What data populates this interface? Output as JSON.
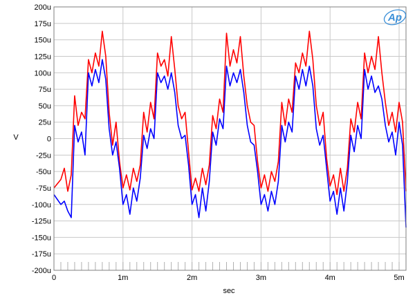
{
  "logo": {
    "text": "Ap",
    "color": "#3a8fd8"
  },
  "chart_data": {
    "type": "line",
    "title": "",
    "xlabel": "sec",
    "ylabel": "V",
    "xlim": [
      0,
      0.0051
    ],
    "ylim": [
      -200,
      200
    ],
    "y_unit": "u",
    "grid": true,
    "x_ticks": [
      {
        "value": 0,
        "label": "0"
      },
      {
        "value": 0.001,
        "label": "1m"
      },
      {
        "value": 0.002,
        "label": "2m"
      },
      {
        "value": 0.003,
        "label": "3m"
      },
      {
        "value": 0.004,
        "label": "4m"
      },
      {
        "value": 0.005,
        "label": "5m"
      }
    ],
    "y_ticks": [
      {
        "value": 200,
        "label": "200u"
      },
      {
        "value": 175,
        "label": "175u"
      },
      {
        "value": 150,
        "label": "150u"
      },
      {
        "value": 125,
        "label": "125u"
      },
      {
        "value": 100,
        "label": "100u"
      },
      {
        "value": 75,
        "label": "75u"
      },
      {
        "value": 50,
        "label": "50u"
      },
      {
        "value": 25,
        "label": "25u"
      },
      {
        "value": 0,
        "label": "0"
      },
      {
        "value": -25,
        "label": "-25u"
      },
      {
        "value": -50,
        "label": "-50u"
      },
      {
        "value": -75,
        "label": "-75u"
      },
      {
        "value": -100,
        "label": "-100u"
      },
      {
        "value": -125,
        "label": "-125u"
      },
      {
        "value": -150,
        "label": "-150u"
      },
      {
        "value": -175,
        "label": "-175u"
      },
      {
        "value": -200,
        "label": "-200u"
      }
    ],
    "series": [
      {
        "color": "#ff0000",
        "points": [
          [
            0.0,
            -75
          ],
          [
            0.0001,
            -62
          ],
          [
            0.00015,
            -45
          ],
          [
            0.0002,
            -80
          ],
          [
            0.00025,
            -55
          ],
          [
            0.0003,
            65
          ],
          [
            0.00035,
            20
          ],
          [
            0.0004,
            40
          ],
          [
            0.00045,
            30
          ],
          [
            0.0005,
            120
          ],
          [
            0.00055,
            100
          ],
          [
            0.0006,
            130
          ],
          [
            0.00065,
            110
          ],
          [
            0.0007,
            163
          ],
          [
            0.00075,
            125
          ],
          [
            0.0008,
            40
          ],
          [
            0.00085,
            -10
          ],
          [
            0.0009,
            25
          ],
          [
            0.00095,
            -35
          ],
          [
            0.001,
            -75
          ],
          [
            0.00105,
            -55
          ],
          [
            0.0011,
            -78
          ],
          [
            0.00115,
            -45
          ],
          [
            0.0012,
            -65
          ],
          [
            0.00125,
            -40
          ],
          [
            0.0013,
            40
          ],
          [
            0.00135,
            10
          ],
          [
            0.0014,
            55
          ],
          [
            0.00145,
            30
          ],
          [
            0.0015,
            130
          ],
          [
            0.00155,
            110
          ],
          [
            0.0016,
            120
          ],
          [
            0.00165,
            95
          ],
          [
            0.0017,
            155
          ],
          [
            0.00175,
            105
          ],
          [
            0.0018,
            50
          ],
          [
            0.00185,
            30
          ],
          [
            0.0019,
            40
          ],
          [
            0.00195,
            -20
          ],
          [
            0.002,
            -78
          ],
          [
            0.00205,
            -60
          ],
          [
            0.0021,
            -80
          ],
          [
            0.00215,
            -45
          ],
          [
            0.0022,
            -70
          ],
          [
            0.00225,
            -40
          ],
          [
            0.0023,
            35
          ],
          [
            0.00235,
            15
          ],
          [
            0.0024,
            60
          ],
          [
            0.00245,
            40
          ],
          [
            0.0025,
            160
          ],
          [
            0.00255,
            110
          ],
          [
            0.0026,
            135
          ],
          [
            0.00265,
            115
          ],
          [
            0.0027,
            155
          ],
          [
            0.00275,
            95
          ],
          [
            0.0028,
            50
          ],
          [
            0.00285,
            25
          ],
          [
            0.0029,
            20
          ],
          [
            0.00295,
            -35
          ],
          [
            0.003,
            -75
          ],
          [
            0.00305,
            -55
          ],
          [
            0.0031,
            -80
          ],
          [
            0.00315,
            -50
          ],
          [
            0.0032,
            -65
          ],
          [
            0.00325,
            -35
          ],
          [
            0.0033,
            55
          ],
          [
            0.00335,
            20
          ],
          [
            0.0034,
            60
          ],
          [
            0.00345,
            40
          ],
          [
            0.0035,
            115
          ],
          [
            0.00355,
            100
          ],
          [
            0.0036,
            130
          ],
          [
            0.00365,
            110
          ],
          [
            0.0037,
            163
          ],
          [
            0.00375,
            120
          ],
          [
            0.0038,
            50
          ],
          [
            0.00385,
            20
          ],
          [
            0.0039,
            40
          ],
          [
            0.00395,
            -30
          ],
          [
            0.004,
            -72
          ],
          [
            0.00405,
            -55
          ],
          [
            0.0041,
            -85
          ],
          [
            0.00415,
            -45
          ],
          [
            0.0042,
            -80
          ],
          [
            0.00425,
            -45
          ],
          [
            0.0043,
            30
          ],
          [
            0.00435,
            10
          ],
          [
            0.0044,
            55
          ],
          [
            0.00445,
            30
          ],
          [
            0.0045,
            130
          ],
          [
            0.00455,
            100
          ],
          [
            0.0046,
            125
          ],
          [
            0.00465,
            105
          ],
          [
            0.0047,
            155
          ],
          [
            0.00475,
            100
          ],
          [
            0.0048,
            55
          ],
          [
            0.00485,
            20
          ],
          [
            0.0049,
            40
          ],
          [
            0.00495,
            10
          ],
          [
            0.005,
            55
          ],
          [
            0.00505,
            25
          ],
          [
            0.0051,
            -80
          ]
        ]
      },
      {
        "color": "#0000ff",
        "points": [
          [
            0.0,
            -85
          ],
          [
            0.0001,
            -100
          ],
          [
            0.00015,
            -95
          ],
          [
            0.0002,
            -110
          ],
          [
            0.00025,
            -120
          ],
          [
            0.0003,
            20
          ],
          [
            0.00035,
            -5
          ],
          [
            0.0004,
            10
          ],
          [
            0.00045,
            -25
          ],
          [
            0.0005,
            100
          ],
          [
            0.00055,
            80
          ],
          [
            0.0006,
            105
          ],
          [
            0.00065,
            85
          ],
          [
            0.0007,
            120
          ],
          [
            0.00075,
            90
          ],
          [
            0.0008,
            15
          ],
          [
            0.00085,
            -25
          ],
          [
            0.0009,
            -5
          ],
          [
            0.00095,
            -45
          ],
          [
            0.001,
            -100
          ],
          [
            0.00105,
            -85
          ],
          [
            0.0011,
            -115
          ],
          [
            0.00115,
            -75
          ],
          [
            0.0012,
            -95
          ],
          [
            0.00125,
            -60
          ],
          [
            0.0013,
            5
          ],
          [
            0.00135,
            -15
          ],
          [
            0.0014,
            15
          ],
          [
            0.00145,
            0
          ],
          [
            0.0015,
            100
          ],
          [
            0.00155,
            85
          ],
          [
            0.0016,
            95
          ],
          [
            0.00165,
            75
          ],
          [
            0.0017,
            100
          ],
          [
            0.00175,
            70
          ],
          [
            0.0018,
            20
          ],
          [
            0.00185,
            0
          ],
          [
            0.0019,
            5
          ],
          [
            0.00195,
            -40
          ],
          [
            0.002,
            -100
          ],
          [
            0.00205,
            -85
          ],
          [
            0.0021,
            -120
          ],
          [
            0.00215,
            -75
          ],
          [
            0.0022,
            -110
          ],
          [
            0.00225,
            -65
          ],
          [
            0.0023,
            10
          ],
          [
            0.00235,
            -10
          ],
          [
            0.0024,
            30
          ],
          [
            0.00245,
            15
          ],
          [
            0.0025,
            110
          ],
          [
            0.00255,
            80
          ],
          [
            0.0026,
            100
          ],
          [
            0.00265,
            85
          ],
          [
            0.0027,
            105
          ],
          [
            0.00275,
            70
          ],
          [
            0.0028,
            20
          ],
          [
            0.00285,
            -5
          ],
          [
            0.0029,
            -10
          ],
          [
            0.00295,
            -50
          ],
          [
            0.003,
            -100
          ],
          [
            0.00305,
            -85
          ],
          [
            0.0031,
            -110
          ],
          [
            0.00315,
            -80
          ],
          [
            0.0032,
            -100
          ],
          [
            0.00325,
            -65
          ],
          [
            0.0033,
            20
          ],
          [
            0.00335,
            -5
          ],
          [
            0.0034,
            25
          ],
          [
            0.00345,
            10
          ],
          [
            0.0035,
            95
          ],
          [
            0.00355,
            75
          ],
          [
            0.0036,
            105
          ],
          [
            0.00365,
            80
          ],
          [
            0.0037,
            110
          ],
          [
            0.00375,
            80
          ],
          [
            0.0038,
            15
          ],
          [
            0.00385,
            -10
          ],
          [
            0.0039,
            5
          ],
          [
            0.00395,
            -45
          ],
          [
            0.004,
            -95
          ],
          [
            0.00405,
            -80
          ],
          [
            0.0041,
            -115
          ],
          [
            0.00415,
            -75
          ],
          [
            0.0042,
            -110
          ],
          [
            0.00425,
            -65
          ],
          [
            0.0043,
            5
          ],
          [
            0.00435,
            -20
          ],
          [
            0.0044,
            20
          ],
          [
            0.00445,
            0
          ],
          [
            0.0045,
            105
          ],
          [
            0.00455,
            75
          ],
          [
            0.0046,
            95
          ],
          [
            0.00465,
            70
          ],
          [
            0.0047,
            80
          ],
          [
            0.00475,
            60
          ],
          [
            0.0048,
            20
          ],
          [
            0.00485,
            -5
          ],
          [
            0.0049,
            10
          ],
          [
            0.00495,
            -25
          ],
          [
            0.005,
            25
          ],
          [
            0.00505,
            -10
          ],
          [
            0.0051,
            -135
          ]
        ]
      }
    ]
  }
}
